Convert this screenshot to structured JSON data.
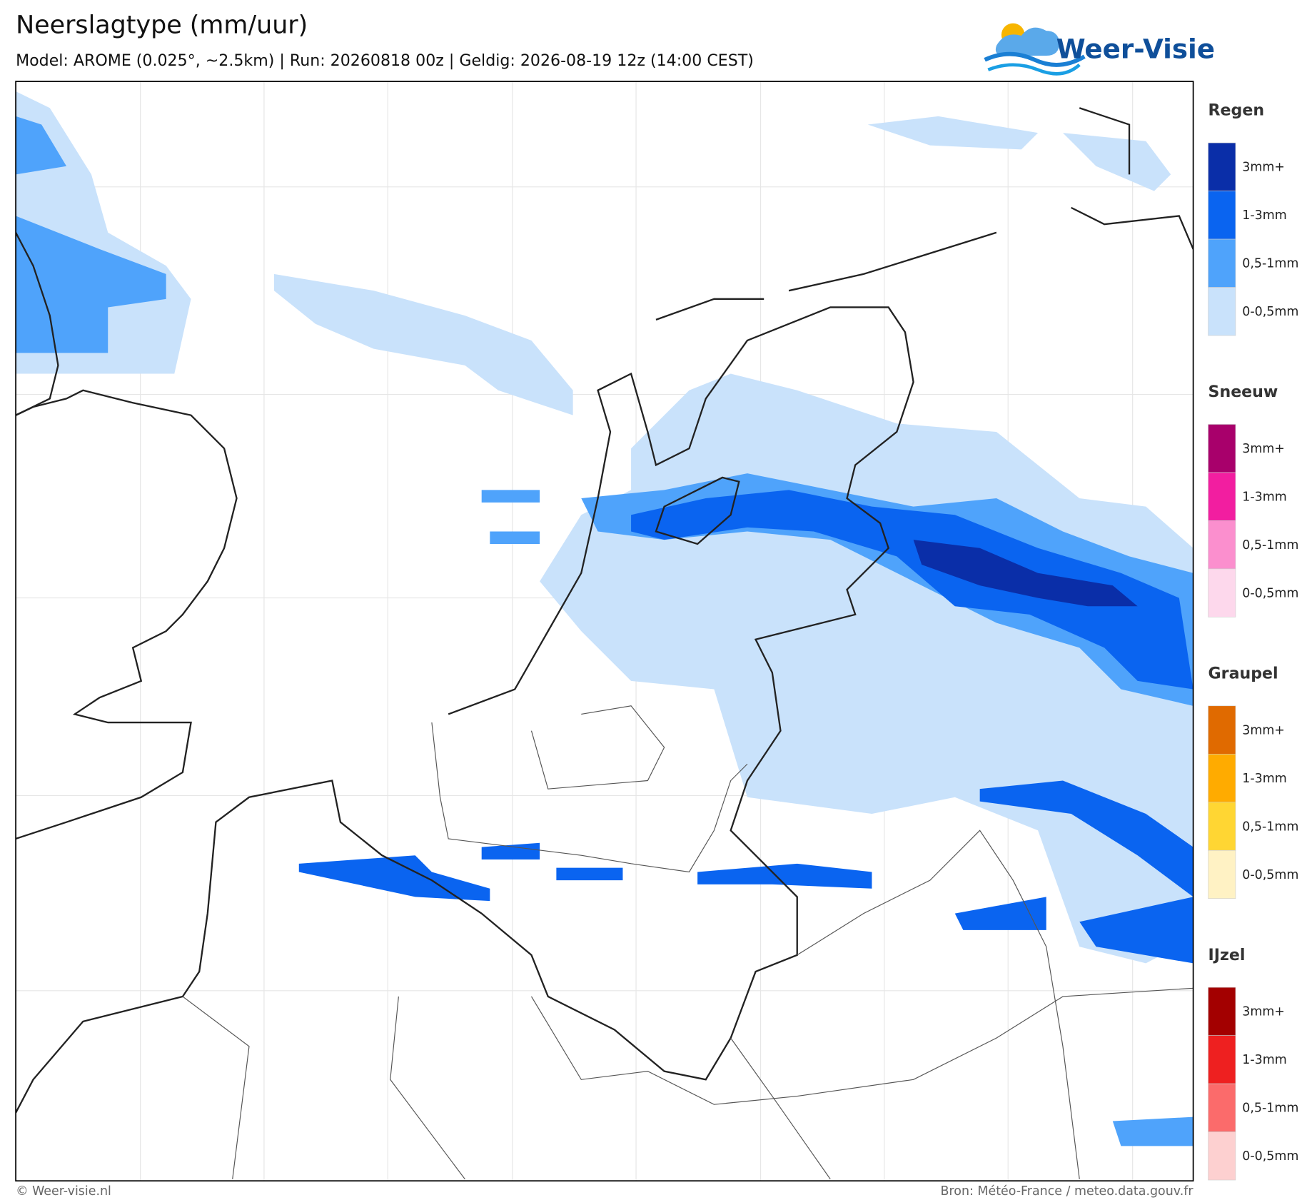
{
  "header": {
    "title": "Neerslagtype (mm/uur)",
    "subtitle": "Model: AROME (0.025°, ~2.5km)  |  Run: 20260818 00z  |  Geldig: 2026-08-19 12z (14:00 CEST)",
    "logo": "Weer-Visie"
  },
  "legend": [
    {
      "title": "Regen",
      "items": [
        {
          "label": "3mm+",
          "color": "#0a2ea8"
        },
        {
          "label": "1-3mm",
          "color": "#0a64f0"
        },
        {
          "label": "0,5-1mm",
          "color": "#4fa3fb"
        },
        {
          "label": "0-0,5mm",
          "color": "#c9e2fb"
        }
      ]
    },
    {
      "title": "Sneeuw",
      "items": [
        {
          "label": "3mm+",
          "color": "#a8006b"
        },
        {
          "label": "1-3mm",
          "color": "#f21ea0"
        },
        {
          "label": "0,5-1mm",
          "color": "#fb8fce"
        },
        {
          "label": "0-0,5mm",
          "color": "#fdd8ec"
        }
      ]
    },
    {
      "title": "Graupel",
      "items": [
        {
          "label": "3mm+",
          "color": "#e06a00"
        },
        {
          "label": "1-3mm",
          "color": "#ffab00"
        },
        {
          "label": "0,5-1mm",
          "color": "#ffd633"
        },
        {
          "label": "0-0,5mm",
          "color": "#fff2c4"
        }
      ]
    },
    {
      "title": "IJzel",
      "items": [
        {
          "label": "3mm+",
          "color": "#a30000"
        },
        {
          "label": "1-3mm",
          "color": "#ee2020"
        },
        {
          "label": "0,5-1mm",
          "color": "#fb6b6b"
        },
        {
          "label": "0-0,5mm",
          "color": "#fdd0d0"
        }
      ]
    }
  ],
  "footer": {
    "left": "© Weer-visie.nl",
    "right": "Bron: Météo-France / meteo.data.gouv.fr"
  }
}
